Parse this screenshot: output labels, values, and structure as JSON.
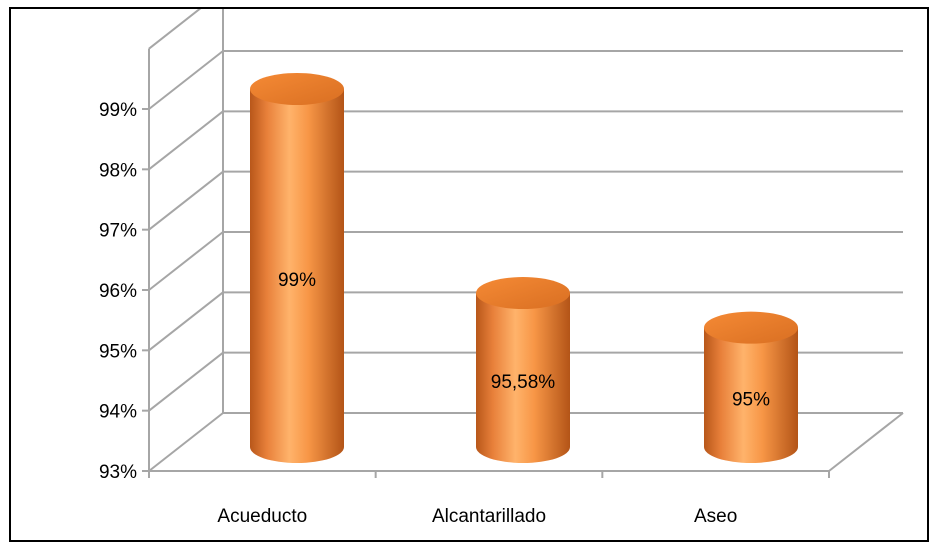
{
  "chart_data": {
    "type": "bar",
    "style": "3d-cylinder",
    "categories": [
      "Acueducto",
      "Alcantarillado",
      "Aseo"
    ],
    "values": [
      99,
      95.58,
      95
    ],
    "data_labels": [
      "99%",
      "95,58%",
      "95%"
    ],
    "ylim": [
      93,
      99
    ],
    "yticks": [
      "93%",
      "94%",
      "95%",
      "96%",
      "97%",
      "98%",
      "99%"
    ],
    "grid": true,
    "legend": "none",
    "colors": {
      "bar": "#f79646",
      "bar_dark": "#c0601a",
      "bar_light": "#fbc089",
      "grid": "#a6a6a6"
    }
  }
}
